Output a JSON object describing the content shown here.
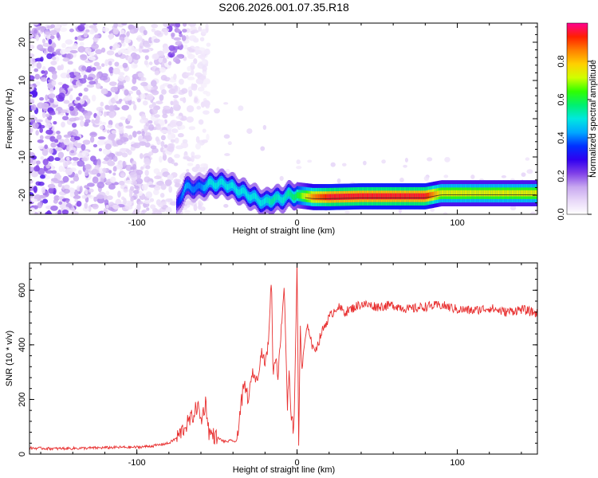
{
  "title": "S206.2026.001.07.35.R18",
  "chart_data": [
    {
      "type": "heatmap",
      "title": "S206.2026.001.07.35.R18",
      "xlabel": "Height of straight line (km)",
      "ylabel": "Frequency (Hz)",
      "xlim": [
        -167,
        150
      ],
      "ylim": [
        -25,
        25
      ],
      "xticks": [
        -100,
        0,
        100
      ],
      "yticks": [
        -20,
        -10,
        0,
        10,
        20
      ],
      "colorbar": {
        "label": "Normalized spectral amplitude",
        "range": [
          0,
          1
        ],
        "ticks": [
          0.0,
          0.2,
          0.4,
          0.6,
          0.8
        ],
        "colormap": [
          "#ffffff",
          "#e8d8f8",
          "#c8a8f0",
          "#8040e8",
          "#3000f0",
          "#0030ff",
          "#00a8ff",
          "#00e8e0",
          "#00f070",
          "#30ff00",
          "#d0ff00",
          "#ffd000",
          "#ff8000",
          "#ff2000",
          "#ff0090"
        ]
      },
      "ridge": {
        "description": "dominant frequency line",
        "x": [
          -75,
          -70,
          -65,
          -60,
          -55,
          -50,
          -45,
          -40,
          -35,
          -30,
          -25,
          -20,
          -15,
          -10,
          -5,
          0,
          10,
          20,
          40,
          60,
          80,
          90,
          100,
          120,
          140,
          150
        ],
        "y": [
          -23,
          -18,
          -18,
          -18,
          -17,
          -17,
          -17,
          -18,
          -19,
          -20,
          -21,
          -22,
          -21,
          -21,
          -20,
          -20,
          -20.5,
          -20.5,
          -20.3,
          -20.3,
          -20.3,
          -19.5,
          -19.5,
          -19.5,
          -19.5,
          -19.5
        ],
        "amplitude": [
          0.3,
          0.45,
          0.4,
          0.4,
          0.5,
          0.5,
          0.5,
          0.5,
          0.5,
          0.5,
          0.5,
          0.5,
          0.55,
          0.5,
          0.55,
          0.6,
          0.85,
          0.95,
          0.95,
          0.95,
          0.95,
          0.75,
          0.75,
          0.75,
          0.75,
          0.75
        ]
      },
      "noise_region": {
        "x_range": [
          -167,
          -55
        ],
        "y_range": [
          -25,
          25
        ]
      }
    },
    {
      "type": "line",
      "xlabel": "Height of straight line (km)",
      "ylabel": "SNR (10 * v/v)",
      "xlim": [
        -167,
        150
      ],
      "ylim": [
        0,
        700
      ],
      "xticks": [
        -100,
        0,
        100
      ],
      "yticks": [
        0,
        200,
        400,
        600
      ],
      "color": "#e83030",
      "x": [
        -167,
        -150,
        -130,
        -110,
        -100,
        -90,
        -80,
        -75,
        -70,
        -65,
        -62,
        -60,
        -57,
        -55,
        -50,
        -45,
        -40,
        -38,
        -35,
        -33,
        -30,
        -28,
        -25,
        -22,
        -20,
        -18,
        -16,
        -15,
        -13,
        -12,
        -10,
        -8,
        -6,
        -5,
        -4,
        -3,
        -2,
        -1,
        0,
        1,
        2,
        3,
        5,
        7,
        10,
        13,
        15,
        18,
        20,
        25,
        30,
        40,
        50,
        60,
        70,
        80,
        90,
        100,
        110,
        120,
        130,
        140,
        150
      ],
      "y": [
        22,
        20,
        22,
        25,
        25,
        30,
        40,
        60,
        100,
        140,
        180,
        120,
        190,
        80,
        60,
        45,
        50,
        40,
        180,
        250,
        200,
        300,
        270,
        380,
        330,
        400,
        650,
        300,
        360,
        280,
        450,
        620,
        170,
        300,
        180,
        120,
        60,
        400,
        700,
        30,
        480,
        300,
        420,
        470,
        380,
        400,
        440,
        480,
        500,
        540,
        520,
        550,
        540,
        545,
        530,
        540,
        545,
        530,
        525,
        535,
        520,
        530,
        515
      ]
    }
  ]
}
